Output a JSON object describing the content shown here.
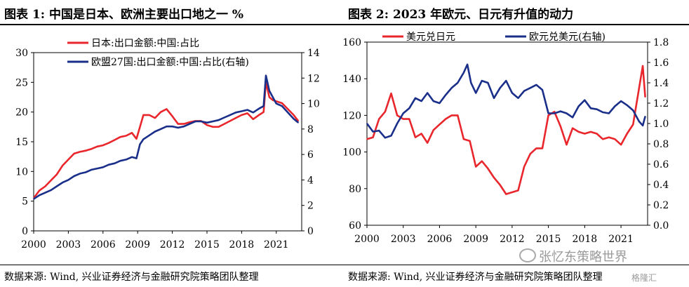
{
  "left_title": "图表 1:  中国是日本、欧洲主要出口地之一 %",
  "right_title": "图表 2:  2023 年欧元、日元有升值的动力",
  "left_source": "数据来源:  Wind, 兴业证券经济与金融研究院策略团队整理",
  "right_source": "数据来源:  Wind, 兴业证券经济与金融研究院策略团队整理",
  "watermark": "张忆东策略世界",
  "watermark2": "格隆汇",
  "colors": {
    "red": "#e8262c",
    "blue": "#1a2f8a"
  },
  "chart_data": [
    {
      "type": "line",
      "title": "图表 1:  中国是日本、欧洲主要出口地之一 %",
      "xlabel": "",
      "ylabel": "",
      "x_ticks": [
        "2000",
        "2003",
        "2006",
        "2009",
        "2012",
        "2015",
        "2018",
        "2021"
      ],
      "ylim": [
        0,
        30
      ],
      "y_ticks": [
        0,
        5,
        10,
        15,
        20,
        25,
        30
      ],
      "y2lim": [
        0,
        14
      ],
      "y2_ticks": [
        0,
        2,
        4,
        6,
        8,
        10,
        12,
        14
      ],
      "legend_position": "top-left",
      "series": [
        {
          "name": "日本:出口金额:中国:占比",
          "axis": "left",
          "color": "#e8262c",
          "x": [
            2000.0,
            2000.5,
            2001.0,
            2001.5,
            2002.0,
            2002.5,
            2003.0,
            2003.5,
            2004.0,
            2004.5,
            2005.0,
            2005.5,
            2006.0,
            2006.5,
            2007.0,
            2007.5,
            2008.0,
            2008.5,
            2008.9,
            2009.2,
            2009.5,
            2010.0,
            2010.5,
            2011.0,
            2011.5,
            2012.0,
            2012.5,
            2013.0,
            2013.5,
            2014.0,
            2014.5,
            2015.0,
            2015.5,
            2016.0,
            2016.5,
            2017.0,
            2017.5,
            2018.0,
            2018.5,
            2019.0,
            2019.5,
            2019.9,
            2020.1,
            2020.4,
            2020.7,
            2021.0,
            2021.5,
            2022.0,
            2022.5,
            2022.9
          ],
          "values": [
            5.5,
            6.8,
            7.5,
            8.5,
            9.5,
            11.0,
            12.0,
            13.0,
            13.3,
            13.5,
            13.8,
            14.2,
            14.4,
            14.8,
            15.3,
            15.8,
            16.0,
            16.5,
            15.5,
            17.5,
            19.5,
            19.5,
            19.0,
            20.0,
            20.5,
            19.3,
            18.0,
            18.0,
            18.3,
            18.5,
            18.5,
            17.8,
            17.5,
            17.5,
            18.0,
            18.5,
            19.0,
            19.5,
            19.8,
            18.8,
            19.5,
            20.0,
            25.0,
            22.5,
            22.0,
            21.8,
            21.5,
            20.5,
            19.5,
            18.5
          ]
        },
        {
          "name": "欧盟27国:出口金额:中国:占比(右轴)",
          "axis": "right",
          "color": "#1a2f8a",
          "x": [
            2000.0,
            2000.5,
            2001.0,
            2001.5,
            2002.0,
            2002.5,
            2003.0,
            2003.5,
            2004.0,
            2004.5,
            2005.0,
            2005.5,
            2006.0,
            2006.5,
            2007.0,
            2007.5,
            2008.0,
            2008.5,
            2008.9,
            2009.2,
            2009.5,
            2010.0,
            2010.5,
            2011.0,
            2011.5,
            2012.0,
            2012.5,
            2013.0,
            2013.5,
            2014.0,
            2014.5,
            2015.0,
            2015.5,
            2016.0,
            2016.5,
            2017.0,
            2017.5,
            2018.0,
            2018.5,
            2019.0,
            2019.5,
            2019.9,
            2020.1,
            2020.4,
            2020.7,
            2021.0,
            2021.5,
            2022.0,
            2022.5,
            2022.9
          ],
          "values": [
            2.5,
            2.8,
            3.0,
            3.2,
            3.5,
            3.8,
            4.0,
            4.3,
            4.5,
            4.6,
            4.8,
            4.9,
            5.0,
            5.2,
            5.3,
            5.5,
            5.6,
            5.8,
            5.7,
            6.8,
            7.2,
            7.5,
            7.8,
            8.0,
            8.2,
            8.2,
            8.1,
            8.2,
            8.4,
            8.6,
            8.6,
            8.5,
            8.6,
            8.7,
            8.9,
            9.1,
            9.3,
            9.4,
            9.5,
            9.3,
            9.6,
            9.8,
            12.2,
            11.0,
            10.5,
            10.0,
            9.8,
            9.3,
            8.8,
            8.5
          ]
        }
      ]
    },
    {
      "type": "line",
      "title": "图表 2:  2023 年欧元、日元有升值的动力",
      "xlabel": "",
      "ylabel": "",
      "x_ticks": [
        "2000",
        "2003",
        "2006",
        "2009",
        "2012",
        "2015",
        "2018",
        "2021"
      ],
      "ylim": [
        60,
        160
      ],
      "y_ticks": [
        60,
        80,
        100,
        120,
        140,
        160
      ],
      "y2lim": [
        0.0,
        1.8
      ],
      "y2_ticks": [
        "0.0",
        "0.2",
        "0.4",
        "0.6",
        "0.8",
        "1.0",
        "1.2",
        "1.4",
        "1.6",
        "1.8"
      ],
      "legend_position": "top",
      "series": [
        {
          "name": "美元兑日元",
          "axis": "left",
          "color": "#e8262c",
          "x": [
            2000.0,
            2000.5,
            2001.0,
            2001.5,
            2002.0,
            2002.5,
            2003.0,
            2003.5,
            2004.0,
            2004.5,
            2005.0,
            2005.5,
            2006.0,
            2006.5,
            2007.0,
            2007.5,
            2008.0,
            2008.5,
            2009.0,
            2009.5,
            2010.0,
            2010.5,
            2011.0,
            2011.5,
            2012.0,
            2012.5,
            2013.0,
            2013.5,
            2014.0,
            2014.5,
            2015.0,
            2015.5,
            2016.0,
            2016.5,
            2017.0,
            2017.5,
            2018.0,
            2018.5,
            2019.0,
            2019.5,
            2020.0,
            2020.5,
            2021.0,
            2021.5,
            2022.0,
            2022.5,
            2022.8,
            2023.0
          ],
          "values": [
            107,
            108,
            118,
            122,
            132,
            120,
            118,
            118,
            108,
            110,
            105,
            112,
            115,
            118,
            120,
            120,
            107,
            106,
            92,
            95,
            91,
            86,
            82,
            77,
            78,
            79,
            92,
            99,
            102,
            102,
            120,
            122,
            114,
            104,
            113,
            111,
            110,
            111,
            110,
            107,
            108,
            107,
            104,
            110,
            115,
            135,
            147,
            130
          ]
        },
        {
          "name": "欧元兑美元(右轴)",
          "axis": "right",
          "color": "#1a2f8a",
          "x": [
            2000.0,
            2000.5,
            2001.0,
            2001.5,
            2002.0,
            2002.5,
            2003.0,
            2003.5,
            2004.0,
            2004.5,
            2005.0,
            2005.5,
            2006.0,
            2006.5,
            2007.0,
            2007.5,
            2008.0,
            2008.3,
            2008.6,
            2009.0,
            2009.5,
            2010.0,
            2010.5,
            2011.0,
            2011.5,
            2012.0,
            2012.5,
            2013.0,
            2013.5,
            2014.0,
            2014.5,
            2015.0,
            2015.5,
            2016.0,
            2016.5,
            2017.0,
            2017.5,
            2018.0,
            2018.5,
            2019.0,
            2019.5,
            2020.0,
            2020.5,
            2021.0,
            2021.5,
            2022.0,
            2022.5,
            2022.8,
            2023.0
          ],
          "values": [
            1.0,
            0.92,
            0.93,
            0.86,
            0.88,
            1.0,
            1.1,
            1.15,
            1.25,
            1.22,
            1.3,
            1.22,
            1.2,
            1.28,
            1.35,
            1.4,
            1.5,
            1.58,
            1.4,
            1.3,
            1.42,
            1.4,
            1.25,
            1.35,
            1.42,
            1.3,
            1.25,
            1.32,
            1.35,
            1.38,
            1.33,
            1.1,
            1.1,
            1.12,
            1.1,
            1.06,
            1.17,
            1.23,
            1.15,
            1.14,
            1.11,
            1.1,
            1.17,
            1.22,
            1.18,
            1.13,
            1.02,
            0.98,
            1.07
          ]
        }
      ]
    }
  ]
}
